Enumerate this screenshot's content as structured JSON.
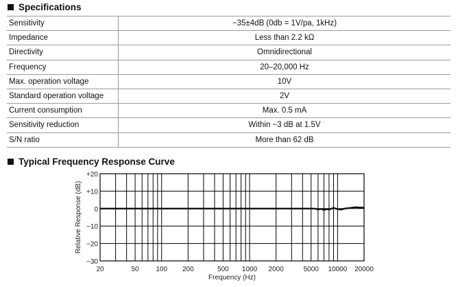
{
  "specifications": {
    "title": "Specifications",
    "rows": [
      {
        "label": "Sensitivity",
        "value": "−35±4dB (0db = 1V/pa, 1kHz)"
      },
      {
        "label": "Impedance",
        "value": "Less than 2.2 kΩ"
      },
      {
        "label": "Directivity",
        "value": "Omnidirectional"
      },
      {
        "label": "Frequency",
        "value": "20–20,000 Hz"
      },
      {
        "label": "Max. operation voltage",
        "value": "10V"
      },
      {
        "label": "Standard operation voltage",
        "value": "2V"
      },
      {
        "label": "Current consumption",
        "value": "Max. 0.5 mA"
      },
      {
        "label": "Sensitivity reduction",
        "value": "Within −3 dB at 1.5V"
      },
      {
        "label": "S/N ratio",
        "value": "More than 62 dB"
      }
    ]
  },
  "frequency_response": {
    "title": "Typical Frequency Response Curve"
  },
  "chart_data": {
    "type": "line",
    "title": "Typical Frequency Response Curve",
    "xlabel": "Frequency (Hz)",
    "ylabel": "Relative Response (dB)",
    "xscale": "log",
    "xlim": [
      20,
      20000
    ],
    "ylim": [
      -30,
      20
    ],
    "grid": true,
    "x_ticks": [
      20,
      50,
      100,
      200,
      500,
      1000,
      2000,
      5000,
      10000,
      20000
    ],
    "x_tick_labels": [
      "20",
      "50",
      "100",
      "200",
      "500",
      "1000",
      "2000",
      "5000",
      "10000",
      "20000"
    ],
    "y_ticks": [
      20,
      10,
      0,
      -10,
      -20,
      -30
    ],
    "y_tick_labels": [
      "+20",
      "+10",
      "0",
      "−10",
      "−20",
      "−30"
    ],
    "series": [
      {
        "color": "#111111",
        "x": [
          20,
          50,
          100,
          200,
          500,
          1000,
          2000,
          4000,
          5000,
          5500,
          6000,
          6500,
          7000,
          7500,
          8000,
          9000,
          10000,
          11000,
          12000,
          14000,
          16000,
          18000,
          20000
        ],
        "y": [
          0,
          0,
          0,
          0,
          0,
          0,
          0,
          0,
          0,
          0,
          -0.5,
          -0.2,
          -0.8,
          -0.3,
          -0.6,
          0.4,
          -0.3,
          -0.6,
          0,
          0.4,
          0.8,
          0.6,
          0.6
        ]
      }
    ]
  }
}
